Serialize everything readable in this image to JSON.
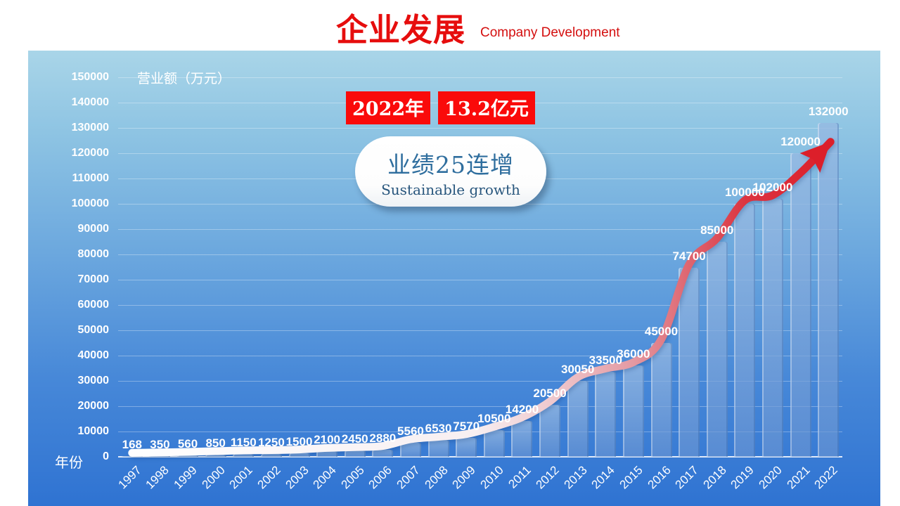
{
  "header": {
    "title": "企业发展",
    "subtitle": "Company Development"
  },
  "badge": {
    "year": "2022年",
    "amount": "13.2亿元"
  },
  "bubble": {
    "line1": "业绩25连增",
    "line2": "Sustainable growth"
  },
  "chart_data": {
    "type": "bar",
    "title": "企业发展 Company Development",
    "categories": [
      "1997",
      "1998",
      "1999",
      "2000",
      "2001",
      "2002",
      "2003",
      "2004",
      "2005",
      "2006",
      "2007",
      "2008",
      "2009",
      "2010",
      "2011",
      "2012",
      "2013",
      "2014",
      "2015",
      "2016",
      "2017",
      "2018",
      "2019",
      "2020",
      "2021",
      "2022"
    ],
    "values": [
      168,
      350,
      560,
      850,
      1150,
      1250,
      1500,
      2100,
      2450,
      2880,
      5560,
      6530,
      7570,
      10500,
      14200,
      20500,
      30050,
      33500,
      36000,
      45000,
      74700,
      85000,
      100000,
      102000,
      120000,
      132000
    ],
    "xlabel": "年份",
    "ylabel": "营业额（万元）",
    "ylim": [
      0,
      150000
    ],
    "ytick_step": 10000,
    "grid": true,
    "legend": "none",
    "annotations": [
      "2022年 13.2亿元",
      "业绩25连增 Sustainable growth"
    ],
    "trend_line": "white-to-red ascending arrow over bar tops"
  },
  "colors": {
    "title_red": "#e60d0d",
    "badge_red": "#fa0a0a",
    "arrow_red": "#dc1f2a",
    "bar_blue": "#82a8da",
    "panel_top": "#a9d5e8",
    "panel_bottom": "#2f73d2",
    "bubble_text": "#2f6e9e"
  }
}
